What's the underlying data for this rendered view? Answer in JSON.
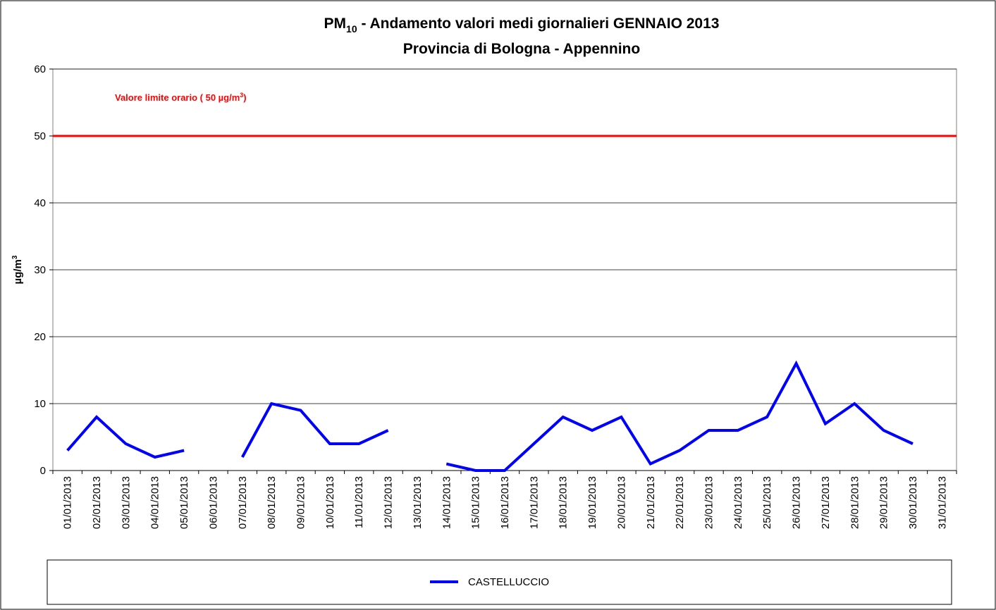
{
  "chart_data": {
    "type": "line",
    "title": [
      "PM",
      "10",
      " - Andamento valori medi giornalieri GENNAIO 2013"
    ],
    "subtitle": "Provincia di Bologna - Appennino",
    "y_label": [
      "µg/m",
      "3"
    ],
    "annotation": [
      "Valore limite orario ( 50 µg/m",
      "3",
      ")"
    ],
    "reference_line": {
      "value": 50,
      "color": "#ff0000"
    },
    "categories": [
      "01/01/2013",
      "02/01/2013",
      "03/01/2013",
      "04/01/2013",
      "05/01/2013",
      "06/01/2013",
      "07/01/2013",
      "08/01/2013",
      "09/01/2013",
      "10/01/2013",
      "11/01/2013",
      "12/01/2013",
      "13/01/2013",
      "14/01/2013",
      "15/01/2013",
      "16/01/2013",
      "17/01/2013",
      "18/01/2013",
      "19/01/2013",
      "20/01/2013",
      "21/01/2013",
      "22/01/2013",
      "23/01/2013",
      "24/01/2013",
      "25/01/2013",
      "26/01/2013",
      "27/01/2013",
      "28/01/2013",
      "29/01/2013",
      "30/01/2013",
      "31/01/2013"
    ],
    "series": [
      {
        "name": "CASTELLUCCIO",
        "color": "#0000ff",
        "values": [
          3,
          8,
          4,
          2,
          3,
          null,
          2,
          10,
          9,
          4,
          4,
          6,
          null,
          1,
          0,
          0,
          4,
          8,
          6,
          8,
          1,
          3,
          6,
          6,
          8,
          16,
          7,
          10,
          6,
          4,
          null
        ]
      }
    ],
    "ylim": [
      0,
      60
    ],
    "yticks": [
      0,
      10,
      20,
      30,
      40,
      50,
      60
    ],
    "grid": true
  }
}
